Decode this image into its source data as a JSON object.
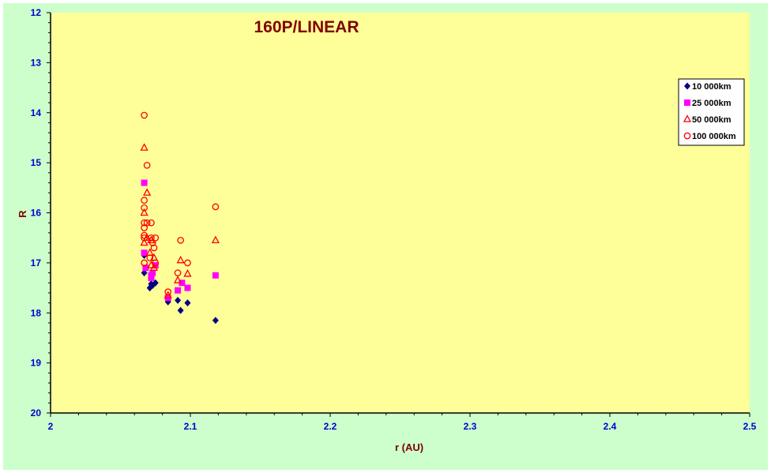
{
  "chart_data": {
    "type": "scatter",
    "title": "160P/LINEAR",
    "xlabel": "r (AU)",
    "ylabel": "R",
    "xlim": [
      2,
      2.5
    ],
    "ylim": [
      12,
      20
    ],
    "y_inverted": true,
    "x_ticks": [
      "2",
      "2.1",
      "2.2",
      "2.3",
      "2.4",
      "2.5"
    ],
    "y_ticks": [
      "12",
      "13",
      "14",
      "15",
      "16",
      "17",
      "18",
      "19",
      "20"
    ],
    "legend_position": "right",
    "plot_background": "#ffff99",
    "figure_background": "#ccffcc",
    "grid": false,
    "series": [
      {
        "name": "10 000km",
        "marker": "diamond",
        "color": "#000080",
        "x": [
          2.067,
          2.067,
          2.071,
          2.072,
          2.073,
          2.075,
          2.084,
          2.091,
          2.093,
          2.098,
          2.118
        ],
        "y": [
          17.2,
          16.85,
          17.5,
          17.42,
          17.45,
          17.4,
          17.78,
          17.75,
          17.95,
          17.8,
          18.15
        ]
      },
      {
        "name": "25 000km",
        "marker": "square",
        "color": "#ff00ff",
        "x": [
          2.067,
          2.067,
          2.068,
          2.072,
          2.072,
          2.073,
          2.075,
          2.084,
          2.091,
          2.094,
          2.098,
          2.118
        ],
        "y": [
          15.4,
          16.8,
          17.1,
          17.3,
          17.25,
          17.2,
          17.05,
          17.7,
          17.55,
          17.4,
          17.5,
          17.25
        ]
      },
      {
        "name": "50 000km",
        "marker": "triangle",
        "color": "#ff0000",
        "x": [
          2.067,
          2.067,
          2.067,
          2.069,
          2.069,
          2.071,
          2.072,
          2.072,
          2.074,
          2.074,
          2.084,
          2.091,
          2.093,
          2.098,
          2.118
        ],
        "y": [
          14.7,
          16.0,
          16.6,
          15.6,
          16.5,
          16.8,
          17.05,
          16.55,
          16.9,
          17.1,
          17.65,
          17.35,
          16.95,
          17.22,
          16.55
        ]
      },
      {
        "name": "100 000km",
        "marker": "circle",
        "color": "#ff0000",
        "x": [
          2.067,
          2.067,
          2.067,
          2.067,
          2.067,
          2.067,
          2.067,
          2.067,
          2.069,
          2.069,
          2.071,
          2.072,
          2.072,
          2.073,
          2.074,
          2.075,
          2.075,
          2.084,
          2.091,
          2.093,
          2.098,
          2.118
        ],
        "y": [
          14.05,
          15.75,
          15.9,
          16.2,
          16.3,
          16.45,
          16.5,
          17.0,
          15.05,
          16.2,
          16.9,
          16.2,
          16.5,
          16.6,
          16.7,
          16.5,
          17.0,
          17.58,
          17.2,
          16.55,
          17.0,
          15.88
        ]
      }
    ]
  }
}
